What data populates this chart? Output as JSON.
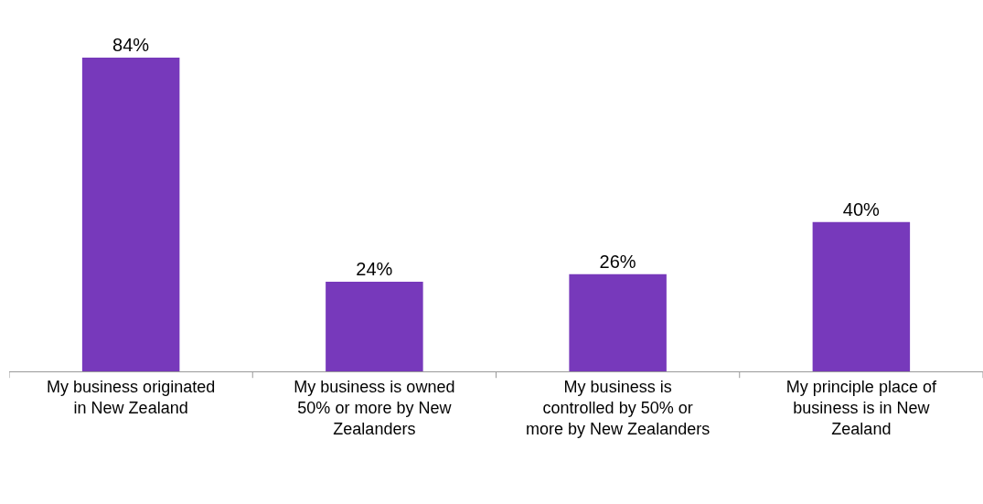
{
  "chart_data": {
    "type": "bar",
    "categories": [
      "My business originated in New Zealand",
      "My business is owned 50% or more by New Zealanders",
      "My business is controlled by 50% or more by New Zealanders",
      "My principle place of business is in New Zealand"
    ],
    "values": [
      84,
      24,
      26,
      40
    ],
    "value_labels": [
      "84%",
      "24%",
      "26%",
      "40%"
    ],
    "color": "#7739bb"
  }
}
